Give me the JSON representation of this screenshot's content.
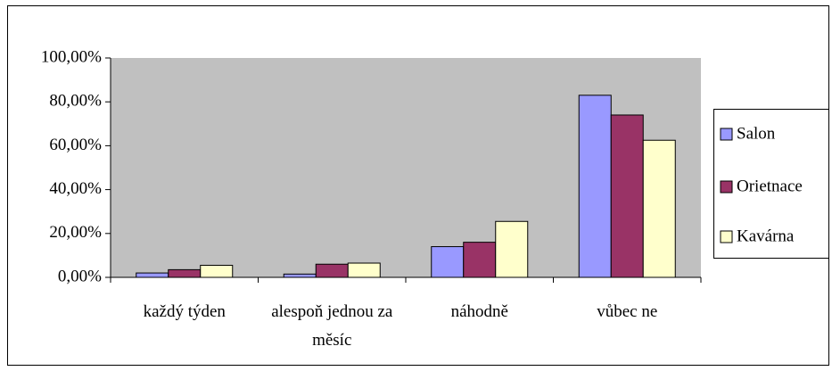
{
  "chart_data": {
    "type": "bar",
    "categories": [
      "každý týden",
      "alespoň jednou za měsíc",
      "náhodně",
      "vůbec ne"
    ],
    "series": [
      {
        "name": "Salon",
        "color": "#9999ff",
        "values": [
          2,
          1.5,
          14,
          83
        ]
      },
      {
        "name": "Orietnace",
        "color": "#993366",
        "values": [
          3.5,
          6,
          16,
          74
        ]
      },
      {
        "name": "Kavárna",
        "color": "#ffffcc",
        "values": [
          5.5,
          6.5,
          25.5,
          62.5
        ]
      }
    ],
    "ylim": [
      0,
      100
    ],
    "yticks": [
      {
        "value": 0,
        "label": "0,00%"
      },
      {
        "value": 20,
        "label": "20,00%"
      },
      {
        "value": 40,
        "label": "40,00%"
      },
      {
        "value": 60,
        "label": "60,00%"
      },
      {
        "value": 80,
        "label": "80,00%"
      },
      {
        "value": 100,
        "label": "100,00%"
      }
    ],
    "legend": "right"
  }
}
